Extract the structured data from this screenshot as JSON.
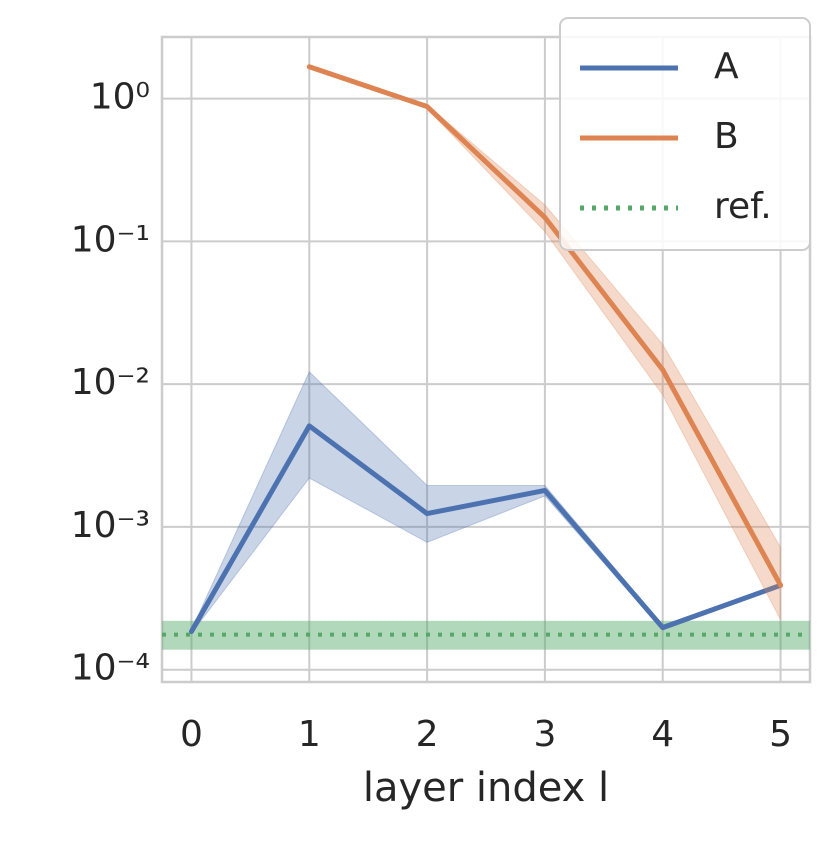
{
  "chart_data": {
    "type": "line",
    "x": [
      0,
      1,
      2,
      3,
      4,
      5
    ],
    "xlabel": "layer index l",
    "xlim": [
      -0.25,
      5.25
    ],
    "xticks": [
      0,
      1,
      2,
      3,
      4,
      5
    ],
    "ylim": [
      8.2e-05,
      2.7
    ],
    "log_y": true,
    "yticks": [
      {
        "value": 1,
        "label": "10⁰"
      },
      {
        "value": 0.1,
        "label": "10⁻¹"
      },
      {
        "value": 0.01,
        "label": "10⁻²"
      },
      {
        "value": 0.001,
        "label": "10⁻³"
      },
      {
        "value": 0.0001,
        "label": "10⁻⁴"
      }
    ],
    "grid": true,
    "legend": "upper right",
    "series": [
      {
        "name": "A",
        "color": "#4c72b0",
        "values": [
          0.000185,
          0.0051,
          0.00124,
          0.0018,
          0.000197,
          0.00039
        ],
        "upper": [
          0.00019,
          0.0122,
          0.00195,
          0.00195,
          0.000205,
          0.0004
        ],
        "lower": [
          0.00018,
          0.0022,
          0.00078,
          0.00165,
          0.00019,
          0.00038
        ]
      },
      {
        "name": "B",
        "color": "#dd8452",
        "values": [
          null,
          1.67,
          0.88,
          0.147,
          0.0126,
          0.00039
        ],
        "upper": [
          null,
          1.7,
          0.9,
          0.18,
          0.019,
          0.00072
        ],
        "lower": [
          null,
          1.64,
          0.85,
          0.117,
          0.0084,
          0.000224
        ]
      }
    ],
    "reference": {
      "name": "ref.",
      "color": "#55a868",
      "value": 0.000176,
      "upper": 0.00022,
      "lower": 0.000138
    }
  }
}
